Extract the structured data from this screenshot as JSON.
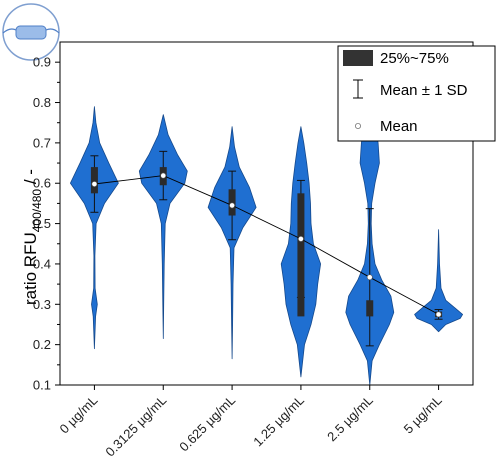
{
  "chart_data": {
    "type": "violin",
    "ylabel": "ratio RFU",
    "ylabel_subscript": "400/480",
    "ylabel_suffix": " / -",
    "ylim": [
      0.1,
      0.95
    ],
    "yticks": [
      0.1,
      0.2,
      0.3,
      0.4,
      0.5,
      0.6,
      0.7,
      0.8,
      0.9
    ],
    "ytick_labels": [
      "0.1",
      "0.2",
      "0.3",
      "0.4",
      "0.5",
      "0.6",
      "0.7",
      "0.8",
      "0.9"
    ],
    "categories": [
      "0 µg/mL",
      "0.3125 µg/mL",
      "0.625 µg/mL",
      "1.25 µg/mL",
      "2.5 µg/mL",
      "5 µg/mL"
    ],
    "means": [
      0.598,
      0.619,
      0.545,
      0.462,
      0.367,
      0.275
    ],
    "sd": [
      0.07,
      0.06,
      0.085,
      0.145,
      0.17,
      0.012
    ],
    "q1": [
      0.575,
      0.595,
      0.52,
      0.27,
      0.27,
      0.268
    ],
    "q3": [
      0.64,
      0.64,
      0.585,
      0.575,
      0.31,
      0.282
    ],
    "violins": [
      {
        "pts": [
          [
            0.19,
            0.0
          ],
          [
            0.27,
            0.05
          ],
          [
            0.3,
            0.12
          ],
          [
            0.34,
            0.03
          ],
          [
            0.42,
            0.02
          ],
          [
            0.5,
            0.07
          ],
          [
            0.55,
            0.42
          ],
          [
            0.6,
            1.0
          ],
          [
            0.65,
            0.6
          ],
          [
            0.7,
            0.22
          ],
          [
            0.75,
            0.06
          ],
          [
            0.79,
            0.0
          ]
        ]
      },
      {
        "pts": [
          [
            0.215,
            0.0
          ],
          [
            0.3,
            0.02
          ],
          [
            0.4,
            0.04
          ],
          [
            0.5,
            0.08
          ],
          [
            0.55,
            0.28
          ],
          [
            0.6,
            0.9
          ],
          [
            0.63,
            1.0
          ],
          [
            0.67,
            0.6
          ],
          [
            0.72,
            0.2
          ],
          [
            0.77,
            0.0
          ]
        ]
      },
      {
        "pts": [
          [
            0.165,
            0.0
          ],
          [
            0.25,
            0.02
          ],
          [
            0.35,
            0.04
          ],
          [
            0.44,
            0.08
          ],
          [
            0.49,
            0.45
          ],
          [
            0.54,
            1.0
          ],
          [
            0.59,
            0.72
          ],
          [
            0.64,
            0.3
          ],
          [
            0.69,
            0.1
          ],
          [
            0.74,
            0.0
          ]
        ]
      },
      {
        "pts": [
          [
            0.12,
            0.0
          ],
          [
            0.2,
            0.15
          ],
          [
            0.25,
            0.42
          ],
          [
            0.3,
            0.62
          ],
          [
            0.35,
            0.7
          ],
          [
            0.4,
            0.82
          ],
          [
            0.45,
            0.52
          ],
          [
            0.5,
            0.42
          ],
          [
            0.55,
            0.4
          ],
          [
            0.6,
            0.34
          ],
          [
            0.65,
            0.24
          ],
          [
            0.7,
            0.12
          ],
          [
            0.74,
            0.0
          ]
        ]
      },
      {
        "pts": [
          [
            0.1,
            0.0
          ],
          [
            0.16,
            0.1
          ],
          [
            0.2,
            0.4
          ],
          [
            0.25,
            0.82
          ],
          [
            0.28,
            1.0
          ],
          [
            0.32,
            0.88
          ],
          [
            0.36,
            0.5
          ],
          [
            0.4,
            0.22
          ],
          [
            0.45,
            0.1
          ],
          [
            0.5,
            0.06
          ],
          [
            0.55,
            0.08
          ],
          [
            0.6,
            0.22
          ],
          [
            0.65,
            0.4
          ],
          [
            0.7,
            0.35
          ],
          [
            0.75,
            0.22
          ],
          [
            0.8,
            0.12
          ],
          [
            0.86,
            0.0
          ]
        ]
      },
      {
        "pts": [
          [
            0.232,
            0.0
          ],
          [
            0.25,
            0.3
          ],
          [
            0.265,
            0.9
          ],
          [
            0.275,
            1.0
          ],
          [
            0.29,
            0.7
          ],
          [
            0.31,
            0.3
          ],
          [
            0.34,
            0.1
          ],
          [
            0.4,
            0.04
          ],
          [
            0.485,
            0.0
          ]
        ]
      }
    ],
    "legend": {
      "position": "top-right",
      "entries": [
        {
          "label": "25%~75%",
          "symbol": "box"
        },
        {
          "label": "Mean ± 1 SD",
          "symbol": "errorbar"
        },
        {
          "label": "Mean",
          "symbol": "circle"
        }
      ]
    },
    "colors": {
      "violin_fill": "#1f6fd1",
      "violin_stroke": "#15498c",
      "box": "#2b2b2b",
      "mean_line": "#000000",
      "mean_dot": "#ffffff"
    }
  },
  "icon": {
    "name": "cuvette-icon"
  }
}
